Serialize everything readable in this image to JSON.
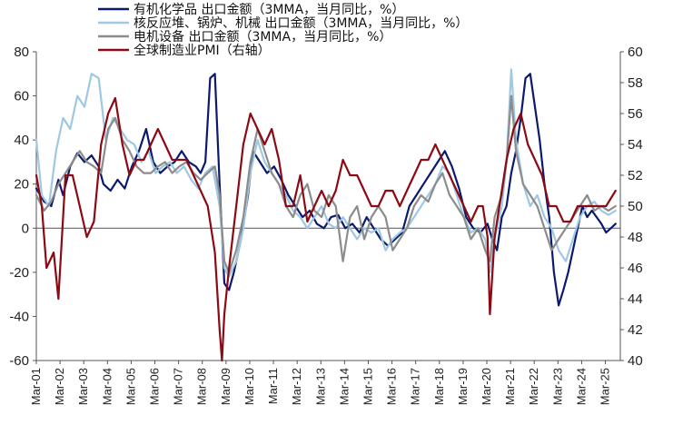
{
  "chart_data": {
    "type": "line",
    "title": "",
    "xlabel": "",
    "ylabel_left": "",
    "ylabel_right": "",
    "ylim_left": [
      -60,
      80
    ],
    "ylim_right": [
      40,
      60
    ],
    "yticks_left": [
      -60,
      -40,
      -20,
      0,
      20,
      40,
      60,
      80
    ],
    "yticks_right": [
      40,
      42,
      44,
      46,
      48,
      50,
      52,
      54,
      56,
      58,
      60
    ],
    "xlim": [
      2001.17,
      2025.8
    ],
    "x_tick_labels": [
      "Mar-01",
      "Mar-02",
      "Mar-03",
      "Mar-04",
      "Mar-05",
      "Mar-06",
      "Mar-07",
      "Mar-08",
      "Mar-09",
      "Mar-10",
      "Mar-11",
      "Mar-12",
      "Mar-13",
      "Mar-14",
      "Mar-15",
      "Mar-16",
      "Mar-17",
      "Mar-18",
      "Mar-19",
      "Mar-20",
      "Mar-21",
      "Mar-22",
      "Mar-23",
      "Mar-24",
      "Mar-25"
    ],
    "legend_position": "top-left",
    "grid": false,
    "series": [
      {
        "name": "有机化学品 出口金额（3MMA，当月同比，%）",
        "axis": "left",
        "color": "#0c1a6e",
        "x": [
          2001.17,
          2001.5,
          2001.8,
          2002.1,
          2002.3,
          2002.6,
          2002.9,
          2003.2,
          2003.5,
          2003.8,
          2004.0,
          2004.3,
          2004.6,
          2004.9,
          2005.2,
          2005.5,
          2005.8,
          2006.1,
          2006.4,
          2006.7,
          2007.0,
          2007.3,
          2007.6,
          2007.9,
          2008.1,
          2008.3,
          2008.5,
          2008.7,
          2008.9,
          2009.1,
          2009.3,
          2009.5,
          2009.8,
          2010.1,
          2010.3,
          2010.6,
          2010.9,
          2011.2,
          2011.5,
          2011.8,
          2012.1,
          2012.4,
          2012.7,
          2013.0,
          2013.3,
          2013.6,
          2013.9,
          2014.2,
          2014.5,
          2014.8,
          2015.1,
          2015.4,
          2015.7,
          2016.0,
          2016.3,
          2016.6,
          2016.9,
          2017.2,
          2017.5,
          2017.8,
          2018.1,
          2018.4,
          2018.7,
          2019.0,
          2019.3,
          2019.6,
          2019.9,
          2020.2,
          2020.4,
          2020.6,
          2020.8,
          2021.0,
          2021.2,
          2021.4,
          2021.6,
          2021.8,
          2022.0,
          2022.2,
          2022.4,
          2022.6,
          2022.8,
          2023.0,
          2023.2,
          2023.4,
          2023.6,
          2023.8,
          2024.0,
          2024.2,
          2024.4,
          2024.6,
          2024.8,
          2025.0,
          2025.2,
          2025.4,
          2025.6
        ],
        "y": [
          18,
          12,
          10,
          22,
          15,
          28,
          34,
          30,
          33,
          28,
          20,
          17,
          22,
          18,
          28,
          35,
          45,
          30,
          25,
          28,
          30,
          35,
          30,
          28,
          25,
          30,
          68,
          70,
          20,
          -25,
          -28,
          -20,
          -5,
          15,
          35,
          30,
          25,
          28,
          22,
          15,
          10,
          5,
          8,
          2,
          0,
          5,
          6,
          0,
          2,
          -2,
          5,
          0,
          -5,
          -8,
          -5,
          -2,
          10,
          15,
          20,
          25,
          30,
          35,
          28,
          18,
          5,
          0,
          -2,
          2,
          -5,
          -10,
          5,
          10,
          25,
          35,
          50,
          68,
          70,
          55,
          40,
          20,
          5,
          -20,
          -35,
          -28,
          -20,
          -10,
          0,
          10,
          5,
          8,
          5,
          2,
          -2,
          0,
          2
        ]
      },
      {
        "name": "核反应堆、锅炉、机械 出口金额（3MMA，当月同比，%）",
        "axis": "left",
        "color": "#9ec8e4",
        "x": [
          2001.17,
          2001.4,
          2001.7,
          2002.0,
          2002.3,
          2002.6,
          2002.9,
          2003.2,
          2003.5,
          2003.8,
          2004.1,
          2004.4,
          2004.7,
          2005.0,
          2005.3,
          2005.6,
          2005.9,
          2006.2,
          2006.5,
          2006.8,
          2007.1,
          2007.4,
          2007.7,
          2008.0,
          2008.3,
          2008.6,
          2008.9,
          2009.1,
          2009.3,
          2009.6,
          2009.9,
          2010.2,
          2010.5,
          2010.8,
          2011.1,
          2011.4,
          2011.7,
          2012.0,
          2012.3,
          2012.6,
          2012.9,
          2013.2,
          2013.5,
          2013.8,
          2014.1,
          2014.4,
          2014.7,
          2015.0,
          2015.3,
          2015.6,
          2015.9,
          2016.2,
          2016.5,
          2016.8,
          2017.1,
          2017.4,
          2017.7,
          2018.0,
          2018.3,
          2018.6,
          2018.9,
          2019.2,
          2019.5,
          2019.8,
          2020.1,
          2020.3,
          2020.5,
          2020.8,
          2021.0,
          2021.2,
          2021.4,
          2021.7,
          2022.0,
          2022.3,
          2022.6,
          2022.9,
          2023.2,
          2023.5,
          2023.8,
          2024.1,
          2024.4,
          2024.7,
          2025.0,
          2025.3,
          2025.6
        ],
        "y": [
          40,
          15,
          10,
          35,
          50,
          45,
          60,
          55,
          70,
          68,
          40,
          50,
          45,
          40,
          38,
          30,
          35,
          25,
          28,
          30,
          25,
          28,
          22,
          18,
          25,
          28,
          10,
          -18,
          -22,
          -15,
          0,
          25,
          40,
          30,
          25,
          20,
          15,
          8,
          5,
          0,
          5,
          10,
          2,
          0,
          5,
          0,
          -5,
          0,
          -2,
          0,
          -10,
          -5,
          -2,
          0,
          5,
          10,
          15,
          20,
          28,
          25,
          15,
          5,
          -2,
          0,
          -5,
          -20,
          -5,
          10,
          30,
          72,
          40,
          20,
          10,
          15,
          5,
          0,
          -10,
          -15,
          -5,
          5,
          10,
          12,
          8,
          6,
          8
        ]
      },
      {
        "name": "电机设备 出口金额（3MMA，当月同比，%）",
        "axis": "left",
        "color": "#8c8c8c",
        "x": [
          2001.17,
          2001.5,
          2001.8,
          2002.1,
          2002.4,
          2002.7,
          2003.0,
          2003.3,
          2003.6,
          2003.9,
          2004.2,
          2004.5,
          2004.8,
          2005.1,
          2005.4,
          2005.7,
          2006.0,
          2006.3,
          2006.6,
          2006.9,
          2007.2,
          2007.5,
          2007.8,
          2008.1,
          2008.4,
          2008.7,
          2008.9,
          2009.1,
          2009.3,
          2009.6,
          2009.9,
          2010.2,
          2010.5,
          2010.8,
          2011.1,
          2011.4,
          2011.7,
          2012.0,
          2012.3,
          2012.6,
          2012.9,
          2013.2,
          2013.5,
          2013.8,
          2014.1,
          2014.4,
          2014.7,
          2015.0,
          2015.3,
          2015.6,
          2015.9,
          2016.2,
          2016.5,
          2016.8,
          2017.1,
          2017.4,
          2017.7,
          2018.0,
          2018.3,
          2018.6,
          2018.9,
          2019.2,
          2019.5,
          2019.8,
          2020.1,
          2020.3,
          2020.5,
          2020.8,
          2021.0,
          2021.2,
          2021.4,
          2021.7,
          2022.0,
          2022.3,
          2022.6,
          2022.9,
          2023.2,
          2023.5,
          2023.8,
          2024.1,
          2024.4,
          2024.7,
          2025.0,
          2025.3,
          2025.6
        ],
        "y": [
          15,
          8,
          12,
          20,
          25,
          30,
          35,
          30,
          28,
          25,
          45,
          50,
          40,
          35,
          28,
          25,
          25,
          28,
          30,
          25,
          28,
          30,
          25,
          22,
          25,
          28,
          15,
          -15,
          -20,
          -10,
          5,
          30,
          45,
          35,
          25,
          20,
          10,
          5,
          15,
          20,
          8,
          5,
          15,
          10,
          -15,
          5,
          10,
          -5,
          5,
          10,
          5,
          -10,
          -5,
          0,
          10,
          15,
          12,
          20,
          25,
          15,
          10,
          5,
          -5,
          0,
          -10,
          -15,
          5,
          15,
          30,
          60,
          35,
          20,
          15,
          10,
          0,
          -10,
          -5,
          0,
          5,
          10,
          15,
          8,
          10,
          8,
          10
        ]
      },
      {
        "name": "全球制造业PMI（右轴）",
        "axis": "right",
        "color": "#8b0a14",
        "x": [
          2001.17,
          2001.4,
          2001.6,
          2001.9,
          2002.1,
          2002.4,
          2002.7,
          2003.0,
          2003.3,
          2003.6,
          2003.9,
          2004.2,
          2004.5,
          2004.8,
          2005.1,
          2005.4,
          2005.7,
          2006.0,
          2006.3,
          2006.6,
          2006.9,
          2007.2,
          2007.5,
          2007.8,
          2008.1,
          2008.4,
          2008.7,
          2008.9,
          2009.0,
          2009.1,
          2009.3,
          2009.6,
          2009.9,
          2010.2,
          2010.5,
          2010.8,
          2011.1,
          2011.4,
          2011.7,
          2012.0,
          2012.3,
          2012.6,
          2012.9,
          2013.2,
          2013.5,
          2013.8,
          2014.1,
          2014.4,
          2014.7,
          2015.0,
          2015.3,
          2015.6,
          2015.9,
          2016.2,
          2016.5,
          2016.8,
          2017.1,
          2017.4,
          2017.7,
          2018.0,
          2018.3,
          2018.6,
          2018.9,
          2019.2,
          2019.5,
          2019.8,
          2020.0,
          2020.2,
          2020.3,
          2020.5,
          2020.8,
          2021.0,
          2021.3,
          2021.6,
          2021.9,
          2022.2,
          2022.5,
          2022.8,
          2023.1,
          2023.4,
          2023.7,
          2024.0,
          2024.3,
          2024.6,
          2024.9,
          2025.2,
          2025.6
        ],
        "y": [
          52,
          50,
          46,
          47,
          44,
          52,
          52,
          50,
          48,
          49,
          54,
          56,
          57,
          54,
          52,
          53,
          53,
          54,
          55,
          54,
          53,
          53,
          53,
          52,
          51,
          50,
          47,
          42,
          40,
          43,
          46,
          50,
          54,
          56,
          55,
          54,
          55,
          53,
          50,
          50,
          52,
          49,
          50,
          51,
          50,
          51,
          53,
          52,
          52,
          51,
          50,
          50,
          51,
          51,
          50,
          51,
          52,
          53,
          53,
          54,
          53,
          52,
          51,
          50,
          49,
          50,
          50,
          48,
          43,
          48,
          51,
          53,
          55,
          56,
          54,
          53,
          52,
          50,
          50,
          49,
          49,
          50,
          50,
          50,
          50,
          50,
          51
        ]
      }
    ]
  }
}
